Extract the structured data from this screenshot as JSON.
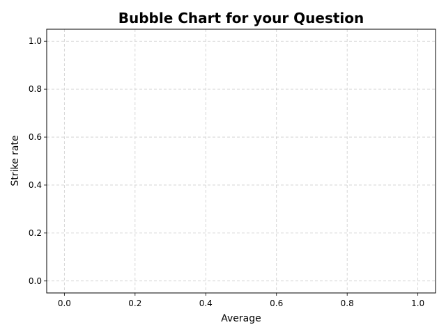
{
  "chart_data": {
    "type": "scatter",
    "title": "Bubble Chart for your Question",
    "xlabel": "Average",
    "ylabel": "Strike rate",
    "xlim": [
      -0.05,
      1.05
    ],
    "ylim": [
      -0.05,
      1.05
    ],
    "xticks": [
      0.0,
      0.2,
      0.4,
      0.6,
      0.8,
      1.0
    ],
    "yticks": [
      0.0,
      0.2,
      0.4,
      0.6,
      0.8,
      1.0
    ],
    "xtick_labels": [
      "0.0",
      "0.2",
      "0.4",
      "0.6",
      "0.8",
      "1.0"
    ],
    "ytick_labels": [
      "0.0",
      "0.2",
      "0.4",
      "0.6",
      "0.8",
      "1.0"
    ],
    "grid": true,
    "series": [],
    "colors": {
      "grid": "#cccccc",
      "frame": "#000000"
    }
  }
}
